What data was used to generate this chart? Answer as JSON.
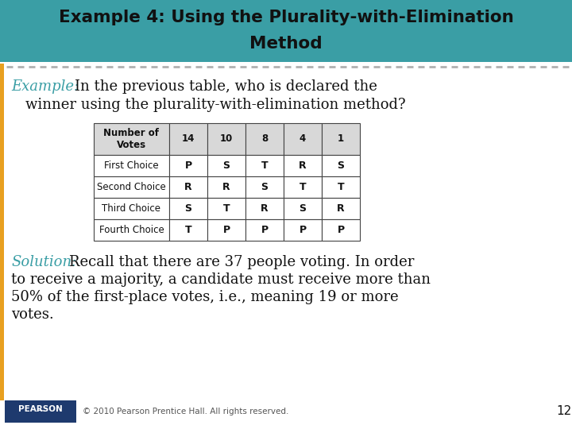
{
  "title_line1": "Example 4: Using the Plurality-with-Elimination",
  "title_line2": "Method",
  "title_bg_color": "#3a9ea5",
  "title_text_color": "#111111",
  "example_label": "Example:",
  "example_label_color": "#3a9ea5",
  "example_body1": "In the previous table, who is declared the",
  "example_body2": "winner using the plurality-with-elimination method?",
  "solution_label": "Solution:",
  "solution_label_color": "#3a9ea5",
  "solution_lines": [
    "Recall that there are 37 people voting. In order",
    "to receive a majority, a candidate must receive more than",
    "50% of the first-place votes, i.e., meaning 19 or more",
    "votes."
  ],
  "table_header": [
    "Number of\nVotes",
    "14",
    "10",
    "8",
    "4",
    "1"
  ],
  "table_rows": [
    [
      "First Choice",
      "P",
      "S",
      "T",
      "R",
      "S"
    ],
    [
      "Second Choice",
      "R",
      "R",
      "S",
      "T",
      "T"
    ],
    [
      "Third Choice",
      "S",
      "T",
      "R",
      "S",
      "R"
    ],
    [
      "Fourth Choice",
      "T",
      "P",
      "P",
      "P",
      "P"
    ]
  ],
  "table_header_bg": "#d8d8d8",
  "table_row_bg": "#ffffff",
  "footer_text": "© 2010 Pearson Prentice Hall. All rights reserved.",
  "page_number": "12",
  "pearson_bg": "#1e3a6e",
  "left_bar_color": "#e8a020",
  "background_color": "#ffffff"
}
